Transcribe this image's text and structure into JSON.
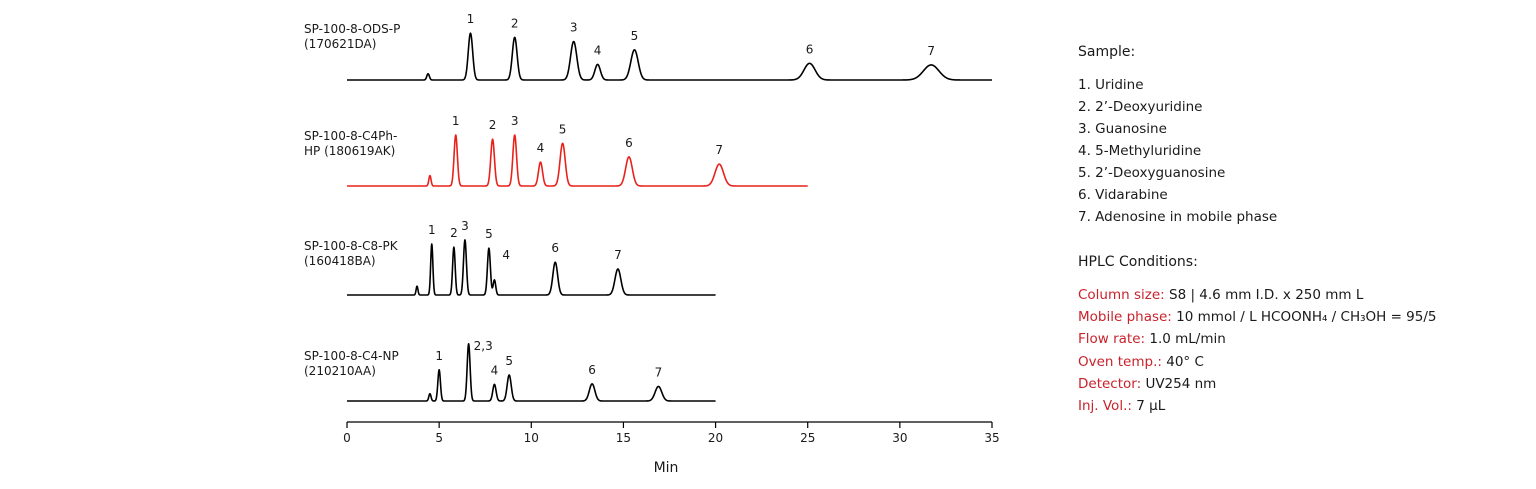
{
  "chart_data": {
    "type": "line",
    "xlabel": "Min",
    "xlim": [
      0,
      35
    ],
    "xticks": [
      0,
      5,
      10,
      15,
      20,
      25,
      30,
      35
    ],
    "grid": false,
    "series": [
      {
        "name": "SP-100-8-ODS-P (170621DA)",
        "label_lines": [
          "SP-100-8-ODS-P",
          "(170621DA)"
        ],
        "color": "#000000",
        "x_end": 35,
        "peaks": [
          {
            "t": 4.4,
            "h": 0.12,
            "w": 0.07
          },
          {
            "t": 6.7,
            "h": 0.9,
            "w": 0.12,
            "label": "1"
          },
          {
            "t": 9.1,
            "h": 0.82,
            "w": 0.13,
            "label": "2"
          },
          {
            "t": 12.3,
            "h": 0.74,
            "w": 0.17,
            "label": "3"
          },
          {
            "t": 13.6,
            "h": 0.3,
            "w": 0.15,
            "label": "4"
          },
          {
            "t": 15.6,
            "h": 0.58,
            "w": 0.2,
            "label": "5"
          },
          {
            "t": 25.1,
            "h": 0.32,
            "w": 0.3,
            "label": "6"
          },
          {
            "t": 31.7,
            "h": 0.29,
            "w": 0.42,
            "label": "7"
          }
        ]
      },
      {
        "name": "SP-100-8-C4Ph-HP (180619AK)",
        "label_lines": [
          "SP-100-8-C4Ph-",
          "HP (180619AK)"
        ],
        "color": "#e8221b",
        "x_end": 25,
        "peaks": [
          {
            "t": 4.5,
            "h": 0.2,
            "w": 0.06
          },
          {
            "t": 5.9,
            "h": 0.98,
            "w": 0.09,
            "label": "1"
          },
          {
            "t": 7.9,
            "h": 0.9,
            "w": 0.1,
            "label": "2"
          },
          {
            "t": 9.1,
            "h": 0.98,
            "w": 0.1,
            "label": "3"
          },
          {
            "t": 10.5,
            "h": 0.46,
            "w": 0.11,
            "label": "4"
          },
          {
            "t": 11.7,
            "h": 0.82,
            "w": 0.14,
            "label": "5"
          },
          {
            "t": 15.3,
            "h": 0.56,
            "w": 0.18,
            "label": "6"
          },
          {
            "t": 20.2,
            "h": 0.42,
            "w": 0.23,
            "label": "7"
          }
        ]
      },
      {
        "name": "SP-100-8-C8-PK (160418BA)",
        "label_lines": [
          "SP-100-8-C8-PK",
          "(160418BA)"
        ],
        "color": "#000000",
        "x_end": 20,
        "peaks": [
          {
            "t": 3.8,
            "h": 0.17,
            "w": 0.05
          },
          {
            "t": 4.6,
            "h": 0.98,
            "w": 0.06,
            "label": "1"
          },
          {
            "t": 5.8,
            "h": 0.92,
            "w": 0.07,
            "label": "2"
          },
          {
            "t": 6.4,
            "h": 1.06,
            "w": 0.08,
            "label": "3"
          },
          {
            "t": 7.7,
            "h": 0.9,
            "w": 0.08,
            "label": "5"
          },
          {
            "t": 8.0,
            "h": 0.29,
            "w": 0.07,
            "label": "4"
          },
          {
            "t": 11.3,
            "h": 0.63,
            "w": 0.13,
            "label": "6"
          },
          {
            "t": 14.7,
            "h": 0.5,
            "w": 0.16,
            "label": "7"
          }
        ]
      },
      {
        "name": "SP-100-8-C4-NP (210210AA)",
        "label_lines": [
          "SP-100-8-C4-NP",
          "(210210AA)"
        ],
        "color": "#000000",
        "x_end": 20,
        "peaks": [
          {
            "t": 4.5,
            "h": 0.14,
            "w": 0.06
          },
          {
            "t": 5.0,
            "h": 0.6,
            "w": 0.07,
            "label": "1"
          },
          {
            "t": 6.6,
            "h": 1.1,
            "w": 0.08,
            "label": "2,3"
          },
          {
            "t": 8.0,
            "h": 0.32,
            "w": 0.09,
            "label": "4"
          },
          {
            "t": 8.8,
            "h": 0.5,
            "w": 0.11,
            "label": "5"
          },
          {
            "t": 13.3,
            "h": 0.33,
            "w": 0.15,
            "label": "6"
          },
          {
            "t": 16.9,
            "h": 0.28,
            "w": 0.18,
            "label": "7"
          }
        ]
      }
    ]
  },
  "sample": {
    "title": "Sample:",
    "items": [
      "1. Uridine",
      "2. 2’-Deoxyuridine",
      "3. Guanosine",
      "4. 5-Methyluridine",
      "5. 2’-Deoxyguanosine",
      "6. Vidarabine",
      "7. Adenosine in mobile phase"
    ]
  },
  "conditions": {
    "title": "HPLC Conditions:",
    "items": [
      {
        "key": "Column size:",
        "value": "S8 | 4.6 mm I.D. x 250 mm L"
      },
      {
        "key": "Mobile phase:",
        "value": "10 mmol / L HCOONH₄ / CH₃OH = 95/5"
      },
      {
        "key": "Flow rate:",
        "value": "1.0 mL/min"
      },
      {
        "key": "Oven temp.:",
        "value": "40° C"
      },
      {
        "key": "Detector:",
        "value": "UV254 nm"
      },
      {
        "key": "Inj. Vol.:",
        "value": "7 μL"
      }
    ]
  },
  "colors": {
    "key": "#c8232c",
    "accent_trace": "#e8221b"
  }
}
